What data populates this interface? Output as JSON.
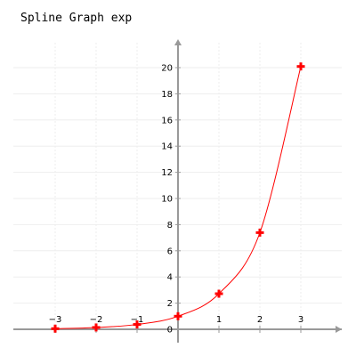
{
  "chart_data": {
    "type": "line",
    "title": "Spline Graph exp",
    "xlabel": "",
    "ylabel": "",
    "xlim": [
      -3.5,
      3.5
    ],
    "ylim": [
      0,
      21
    ],
    "x_ticks": [
      -3,
      -2,
      -1,
      0,
      1,
      2,
      3
    ],
    "y_ticks": [
      0,
      2,
      4,
      6,
      8,
      10,
      12,
      14,
      16,
      18,
      20
    ],
    "grid": true,
    "smooth": true,
    "series": [
      {
        "x": [
          -3,
          -2,
          -1,
          0,
          1,
          2,
          3
        ],
        "y": [
          0.05,
          0.14,
          0.37,
          1.0,
          2.72,
          7.39,
          20.09
        ],
        "color": "#ff0000",
        "marker": "plus"
      }
    ],
    "colors": {
      "axis": "#999999",
      "grid": "#eeeeee",
      "line": "#ff0000",
      "marker": "#ff0000"
    }
  }
}
